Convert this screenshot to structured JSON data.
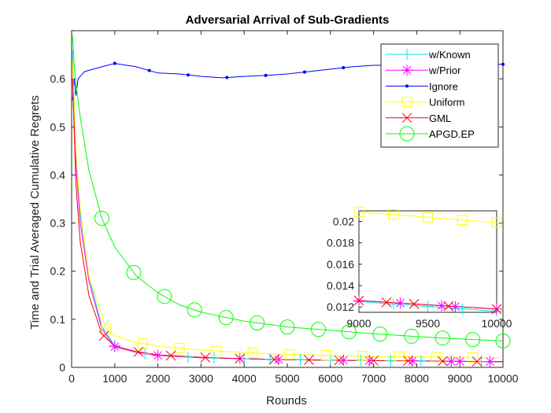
{
  "chart_data": {
    "type": "line",
    "title": "Adversarial Arrival of Sub-Gradients",
    "xlabel": "Rounds",
    "ylabel": "Time and Trial Averaged Cumulative Regrets",
    "xlim": [
      0,
      10000
    ],
    "ylim": [
      0,
      0.7
    ],
    "xticks": [
      0,
      1000,
      2000,
      3000,
      4000,
      5000,
      6000,
      7000,
      8000,
      9000,
      10000
    ],
    "yticks": [
      0,
      0.1,
      0.2,
      0.3,
      0.4,
      0.5,
      0.6
    ],
    "grid": false,
    "legend_position": "top-right",
    "series": [
      {
        "name": "w/Known",
        "color": "#00e5ee",
        "marker": "plus",
        "x": [
          20,
          100,
          200,
          400,
          700,
          1000,
          1500,
          2000,
          3000,
          4000,
          5000,
          6000,
          7000,
          8000,
          9000,
          10000
        ],
        "y": [
          0.66,
          0.45,
          0.32,
          0.19,
          0.085,
          0.045,
          0.031,
          0.025,
          0.02,
          0.018,
          0.016,
          0.015,
          0.014,
          0.0135,
          0.0125,
          0.0118
        ],
        "marker_x": [
          1000,
          1700,
          2700,
          3300,
          4000,
          4600,
          5300,
          6000,
          6700,
          7400,
          8100,
          8800,
          9500
        ]
      },
      {
        "name": "w/Prior",
        "color": "#ff00ff",
        "marker": "asterisk",
        "x": [
          20,
          100,
          200,
          400,
          700,
          1000,
          1500,
          2000,
          3000,
          4000,
          5000,
          6000,
          7000,
          8000,
          9000,
          10000
        ],
        "y": [
          0.64,
          0.42,
          0.3,
          0.18,
          0.08,
          0.043,
          0.031,
          0.025,
          0.02,
          0.018,
          0.016,
          0.015,
          0.014,
          0.0135,
          0.0125,
          0.0119
        ],
        "marker_x": [
          1000,
          2000,
          3900,
          4800,
          6300,
          6900,
          7900,
          8800,
          9000,
          9700
        ]
      },
      {
        "name": "Ignore",
        "color": "#0000ff",
        "marker": "dot",
        "x": [
          20,
          60,
          100,
          150,
          200,
          300,
          500,
          700,
          1000,
          1500,
          2000,
          2500,
          3000,
          3500,
          4000,
          4500,
          5000,
          5500,
          6000,
          6500,
          7000,
          7500,
          8000,
          8500,
          9000,
          9500,
          10000
        ],
        "y": [
          0.555,
          0.6,
          0.565,
          0.6,
          0.605,
          0.615,
          0.62,
          0.625,
          0.632,
          0.625,
          0.612,
          0.61,
          0.605,
          0.602,
          0.605,
          0.607,
          0.61,
          0.615,
          0.62,
          0.625,
          0.628,
          0.628,
          0.63,
          0.63,
          0.63,
          0.63,
          0.63
        ],
        "marker_x": [
          1000,
          1800,
          2700,
          3600,
          4500,
          5400,
          6300,
          7200,
          8100,
          9000,
          10000
        ]
      },
      {
        "name": "Uniform",
        "color": "#ffff00",
        "marker": "square",
        "x": [
          20,
          100,
          200,
          400,
          800,
          1000,
          1500,
          2000,
          3000,
          4000,
          5000,
          6000,
          7000,
          8000,
          9000,
          10000
        ],
        "y": [
          0.64,
          0.45,
          0.33,
          0.19,
          0.08,
          0.066,
          0.052,
          0.044,
          0.036,
          0.031,
          0.027,
          0.025,
          0.023,
          0.022,
          0.021,
          0.02
        ],
        "marker_x": [
          800,
          1650,
          2500,
          3350,
          4200,
          5050,
          5900,
          6750,
          7600,
          8450,
          9300
        ]
      },
      {
        "name": "GML",
        "color": "#ff0000",
        "marker": "x",
        "x": [
          20,
          100,
          200,
          400,
          700,
          1000,
          1500,
          2000,
          3000,
          4000,
          5000,
          6000,
          7000,
          8000,
          9000,
          10000
        ],
        "y": [
          0.6,
          0.38,
          0.26,
          0.15,
          0.07,
          0.044,
          0.033,
          0.026,
          0.021,
          0.018,
          0.016,
          0.015,
          0.014,
          0.0135,
          0.0125,
          0.0118
        ],
        "marker_x": [
          750,
          1550,
          2300,
          3100,
          3900,
          4700,
          5500,
          6200,
          7000,
          7800,
          8600,
          9400
        ]
      },
      {
        "name": "APGD.EP",
        "color": "#00ff00",
        "marker": "circle",
        "x": [
          20,
          60,
          100,
          200,
          400,
          700,
          1000,
          1500,
          2000,
          2500,
          3000,
          3500,
          4000,
          5000,
          6000,
          7000,
          8000,
          9000,
          10000
        ],
        "y": [
          0.69,
          0.63,
          0.59,
          0.52,
          0.41,
          0.31,
          0.25,
          0.19,
          0.155,
          0.13,
          0.115,
          0.105,
          0.096,
          0.084,
          0.077,
          0.07,
          0.064,
          0.059,
          0.055
        ],
        "marker_x": [
          700,
          1440,
          2150,
          2850,
          3580,
          4300,
          5000,
          5720,
          6430,
          7150,
          7880,
          8600,
          9300,
          10000
        ]
      }
    ],
    "inset": {
      "xlim": [
        9000,
        10000
      ],
      "ylim": [
        0.0115,
        0.021
      ],
      "xticks": [
        9000,
        9500,
        10000
      ],
      "yticks": [
        0.012,
        0.014,
        0.016,
        0.018,
        0.02
      ],
      "series": [
        {
          "name": "w/Known",
          "x": [
            9000,
            10000
          ],
          "y": [
            0.0125,
            0.0116
          ],
          "marker_x": [
            9000,
            9250,
            9500,
            9750,
            10000
          ]
        },
        {
          "name": "w/Prior",
          "x": [
            9000,
            10000
          ],
          "y": [
            0.0126,
            0.0118
          ],
          "marker_x": [
            9000,
            9300,
            9600,
            9700,
            10000
          ]
        },
        {
          "name": "Uniform",
          "x": [
            9000,
            10000
          ],
          "y": [
            0.0209,
            0.0199
          ],
          "marker_x": [
            9000,
            9250,
            9500,
            9750,
            10000
          ]
        },
        {
          "name": "GML",
          "x": [
            9000,
            10000
          ],
          "y": [
            0.0126,
            0.0118
          ],
          "marker_x": [
            9000,
            9200,
            9400,
            9650,
            10000
          ]
        }
      ]
    }
  }
}
